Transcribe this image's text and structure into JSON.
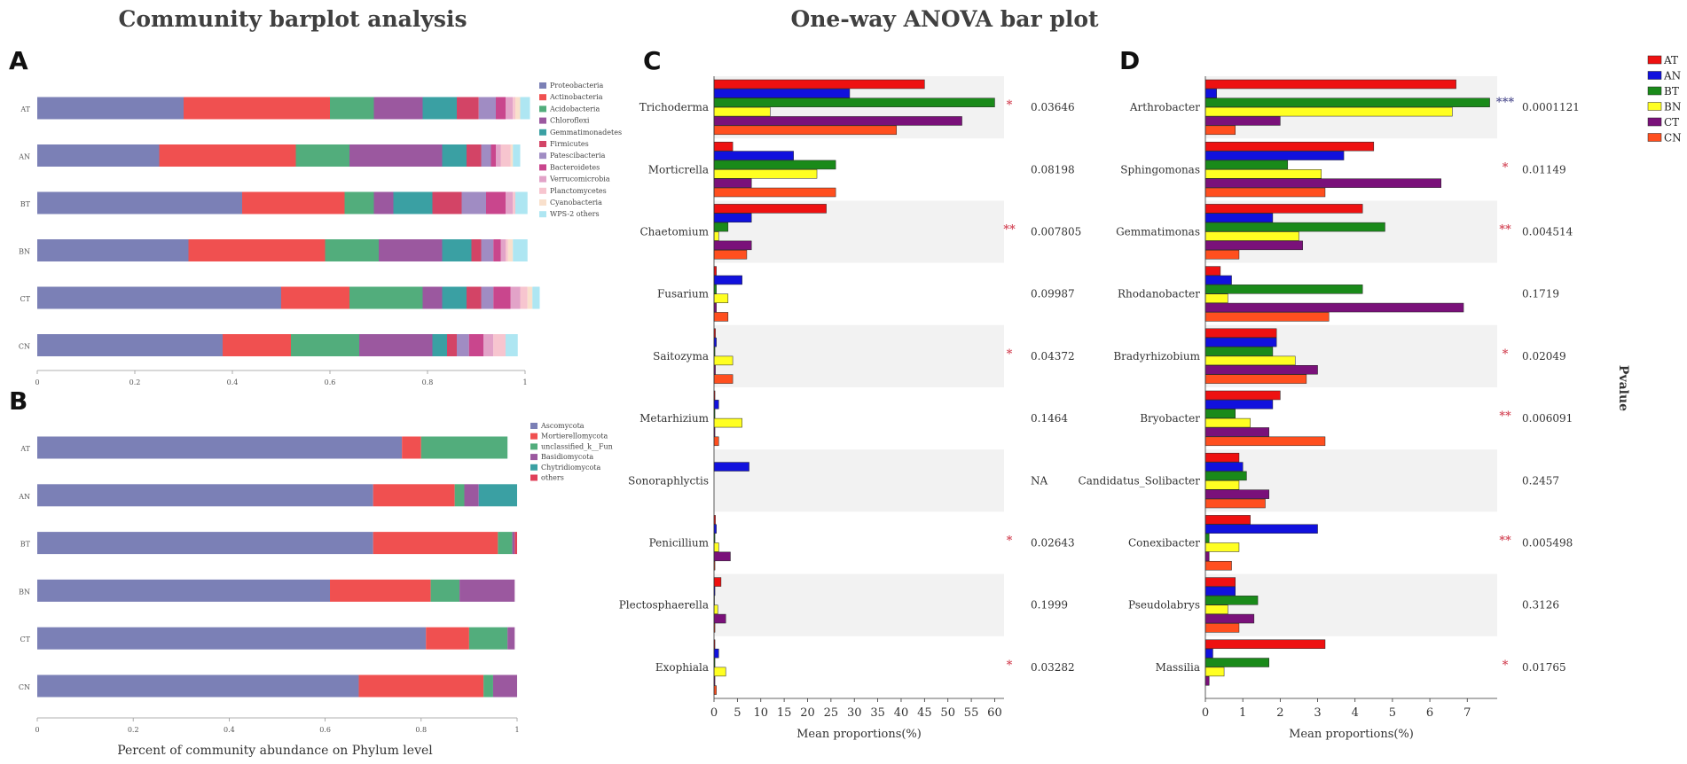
{
  "titles": {
    "left": "Community barplot analysis",
    "right": "One-way ANOVA bar plot"
  },
  "panel_letters": {
    "a": "A",
    "b": "B",
    "c": "C",
    "d": "D"
  },
  "colors": {
    "Proteobacteria": "#7b80b6",
    "Actinobacteria": "#f05050",
    "Acidobacteria": "#52ad7c",
    "Chloroflexi": "#9b589f",
    "Gemmatimonadetes": "#3aa0a3",
    "Firmicutes": "#d34466",
    "Patescibacteria": "#a08cc3",
    "Bacteroidetes": "#c9468d",
    "Verrucomicrobia": "#e2a3c8",
    "Planctomycetes": "#f7c5cf",
    "Cyanobacteria": "#f9e0cc",
    "WPS-2 others": "#aee6f2",
    "Ascomycota": "#7b80b6",
    "Mortierellomycota": "#f05050",
    "unclassified_k__Fun": "#52ad7c",
    "Basidiomycota": "#9b589f",
    "Chytridiomycota": "#3aa0a3",
    "others": "#e0405a",
    "AT": "#ee1111",
    "AN": "#1111dd",
    "BT": "#1a8a1a",
    "BN": "#ffff22",
    "CT": "#7a117a",
    "CN": "#ff4f1f",
    "stripe": "#f2f2f2",
    "sig": "#d44a5a",
    "sig_dark": "#505090"
  },
  "chart_data": [
    {
      "id": "A",
      "type": "bar",
      "orientation": "horizontal",
      "stacked": true,
      "xlim": [
        0,
        1
      ],
      "xticks": [
        "0",
        "0.2",
        "0.4",
        "0.6",
        "0.8",
        "1"
      ],
      "categories": [
        "AT",
        "AN",
        "BT",
        "BN",
        "CT",
        "CN"
      ],
      "legend": [
        "Proteobacteria",
        "Actinobacteria",
        "Acidobacteria",
        "Chloroflexi",
        "Gemmatimonadetes",
        "Firmicutes",
        "Patescibacteria",
        "Bacteroidetes",
        "Verrucomicrobia",
        "Planctomycetes",
        "Cyanobacteria",
        "WPS-2 others"
      ],
      "series": [
        {
          "name": "Proteobacteria",
          "values": [
            0.3,
            0.25,
            0.42,
            0.31,
            0.5,
            0.38
          ]
        },
        {
          "name": "Actinobacteria",
          "values": [
            0.3,
            0.28,
            0.21,
            0.28,
            0.14,
            0.14
          ]
        },
        {
          "name": "Acidobacteria",
          "values": [
            0.09,
            0.11,
            0.06,
            0.11,
            0.15,
            0.14
          ]
        },
        {
          "name": "Chloroflexi",
          "values": [
            0.1,
            0.19,
            0.04,
            0.13,
            0.04,
            0.15
          ]
        },
        {
          "name": "Gemmatimonadetes",
          "values": [
            0.07,
            0.05,
            0.08,
            0.06,
            0.05,
            0.03
          ]
        },
        {
          "name": "Firmicutes",
          "values": [
            0.045,
            0.03,
            0.06,
            0.02,
            0.03,
            0.02
          ]
        },
        {
          "name": "Patescibacteria",
          "values": [
            0.035,
            0.02,
            0.05,
            0.025,
            0.025,
            0.025
          ]
        },
        {
          "name": "Bacteroidetes",
          "values": [
            0.02,
            0.01,
            0.04,
            0.015,
            0.035,
            0.03
          ]
        },
        {
          "name": "Verrucomicrobia",
          "values": [
            0.015,
            0.01,
            0.015,
            0.01,
            0.02,
            0.02
          ]
        },
        {
          "name": "Planctomycetes",
          "values": [
            0.005,
            0.02,
            0.005,
            0.005,
            0.015,
            0.025
          ]
        },
        {
          "name": "Cyanobacteria",
          "values": [
            0.01,
            0.005,
            0.0,
            0.01,
            0.01,
            0.0
          ]
        },
        {
          "name": "WPS-2 others",
          "values": [
            0.02,
            0.015,
            0.025,
            0.03,
            0.015,
            0.025
          ]
        }
      ]
    },
    {
      "id": "B",
      "type": "bar",
      "orientation": "horizontal",
      "stacked": true,
      "xlim": [
        0,
        1
      ],
      "xticks": [
        "0",
        "0.2",
        "0.4",
        "0.6",
        "0.8",
        "1"
      ],
      "xlabel": "Percent of community abundance on Phylum level",
      "categories": [
        "AT",
        "AN",
        "BT",
        "BN",
        "CT",
        "CN"
      ],
      "legend": [
        "Ascomycota",
        "Mortierellomycota",
        "unclassified_k__Fun",
        "Basidiomycota",
        "Chytridiomycota",
        "others"
      ],
      "series": [
        {
          "name": "Ascomycota",
          "values": [
            0.76,
            0.7,
            0.7,
            0.61,
            0.81,
            0.67
          ]
        },
        {
          "name": "Mortierellomycota",
          "values": [
            0.04,
            0.17,
            0.26,
            0.21,
            0.09,
            0.26
          ]
        },
        {
          "name": "unclassified_k__Fun",
          "values": [
            0.18,
            0.02,
            0.03,
            0.06,
            0.08,
            0.02
          ]
        },
        {
          "name": "Basidiomycota",
          "values": [
            0.0,
            0.03,
            0.005,
            0.115,
            0.015,
            0.05
          ]
        },
        {
          "name": "Chytridiomycota",
          "values": [
            0.0,
            0.08,
            0.0,
            0.0,
            0.0,
            0.0
          ]
        },
        {
          "name": "others",
          "values": [
            0.0,
            0.0,
            0.005,
            0.0,
            0.0,
            0.0
          ]
        }
      ]
    },
    {
      "id": "C",
      "type": "bar",
      "orientation": "horizontal",
      "grouped": true,
      "xlim": [
        0,
        62
      ],
      "xticks": [
        0,
        5,
        10,
        15,
        20,
        25,
        30,
        35,
        40,
        45,
        50,
        55,
        60
      ],
      "xlabel": "Mean proportions(%)",
      "groups": [
        "AT",
        "AN",
        "BT",
        "BN",
        "CT",
        "CN"
      ],
      "taxa": [
        {
          "name": "Trichoderma",
          "values": [
            45,
            29,
            60,
            12,
            53,
            39
          ],
          "p": "0.03646",
          "sig": "*"
        },
        {
          "name": "Morticrella",
          "values": [
            4,
            17,
            26,
            22,
            8,
            26
          ],
          "p": "0.08198",
          "sig": ""
        },
        {
          "name": "Chaetomium",
          "values": [
            24,
            8,
            3,
            1,
            8,
            7
          ],
          "p": "0.007805",
          "sig": "**"
        },
        {
          "name": "Fusarium",
          "values": [
            0.5,
            6,
            0.5,
            3,
            0.5,
            3
          ],
          "p": "0.09987",
          "sig": ""
        },
        {
          "name": "Saitozyma",
          "values": [
            0.3,
            0.5,
            0.2,
            4,
            0.3,
            4
          ],
          "p": "0.04372",
          "sig": "*"
        },
        {
          "name": "Metarhizium",
          "values": [
            0.2,
            1,
            0.2,
            6,
            0.2,
            1
          ],
          "p": "0.1464",
          "sig": ""
        },
        {
          "name": "Sonoraphlyctis",
          "values": [
            0,
            7.5,
            0,
            0,
            0,
            0
          ],
          "p": "NA",
          "sig": ""
        },
        {
          "name": "Penicillium",
          "values": [
            0.3,
            0.5,
            0.2,
            1,
            3.5,
            0.2
          ],
          "p": "0.02643",
          "sig": "*"
        },
        {
          "name": "Plectosphaerella",
          "values": [
            1.5,
            0.2,
            0.1,
            0.8,
            2.5,
            0.2
          ],
          "p": "0.1999",
          "sig": ""
        },
        {
          "name": "Exophiala",
          "values": [
            0.2,
            1,
            0.2,
            2.5,
            0.2,
            0.5
          ],
          "p": "0.03282",
          "sig": "*"
        }
      ]
    },
    {
      "id": "D",
      "type": "bar",
      "orientation": "horizontal",
      "grouped": true,
      "xlim": [
        0,
        7.8
      ],
      "xticks": [
        0,
        1,
        2,
        3,
        4,
        5,
        6,
        7
      ],
      "xlabel": "Mean proportions(%)",
      "right_label": "Pvalue",
      "groups": [
        "AT",
        "AN",
        "BT",
        "BN",
        "CT",
        "CN"
      ],
      "taxa": [
        {
          "name": "Arthrobacter",
          "values": [
            6.7,
            0.3,
            7.6,
            6.6,
            2.0,
            0.8
          ],
          "p": "0.0001121",
          "sig": "***"
        },
        {
          "name": "Sphingomonas",
          "values": [
            4.5,
            3.7,
            2.2,
            3.1,
            6.3,
            3.2
          ],
          "p": "0.01149",
          "sig": "*"
        },
        {
          "name": "Gemmatimonas",
          "values": [
            4.2,
            1.8,
            4.8,
            2.5,
            2.6,
            0.9
          ],
          "p": "0.004514",
          "sig": "**"
        },
        {
          "name": "Rhodanobacter",
          "values": [
            0.4,
            0.7,
            4.2,
            0.6,
            6.9,
            3.3
          ],
          "p": "0.1719",
          "sig": ""
        },
        {
          "name": "Bradyrhizobium",
          "values": [
            1.9,
            1.9,
            1.8,
            2.4,
            3.0,
            2.7
          ],
          "p": "0.02049",
          "sig": "*"
        },
        {
          "name": "Bryobacter",
          "values": [
            2.0,
            1.8,
            0.8,
            1.2,
            1.7,
            3.2
          ],
          "p": "0.006091",
          "sig": "**"
        },
        {
          "name": "Candidatus_Solibacter",
          "values": [
            0.9,
            1.0,
            1.1,
            0.9,
            1.7,
            1.6
          ],
          "p": "0.2457",
          "sig": ""
        },
        {
          "name": "Conexibacter",
          "values": [
            1.2,
            3.0,
            0.1,
            0.9,
            0.1,
            0.7
          ],
          "p": "0.005498",
          "sig": "**"
        },
        {
          "name": "Pseudolabrys",
          "values": [
            0.8,
            0.8,
            1.4,
            0.6,
            1.3,
            0.9
          ],
          "p": "0.3126",
          "sig": ""
        },
        {
          "name": "Massilia",
          "values": [
            3.2,
            0.2,
            1.7,
            0.5,
            0.1,
            0.0
          ],
          "p": "0.01765",
          "sig": "*"
        }
      ]
    }
  ]
}
